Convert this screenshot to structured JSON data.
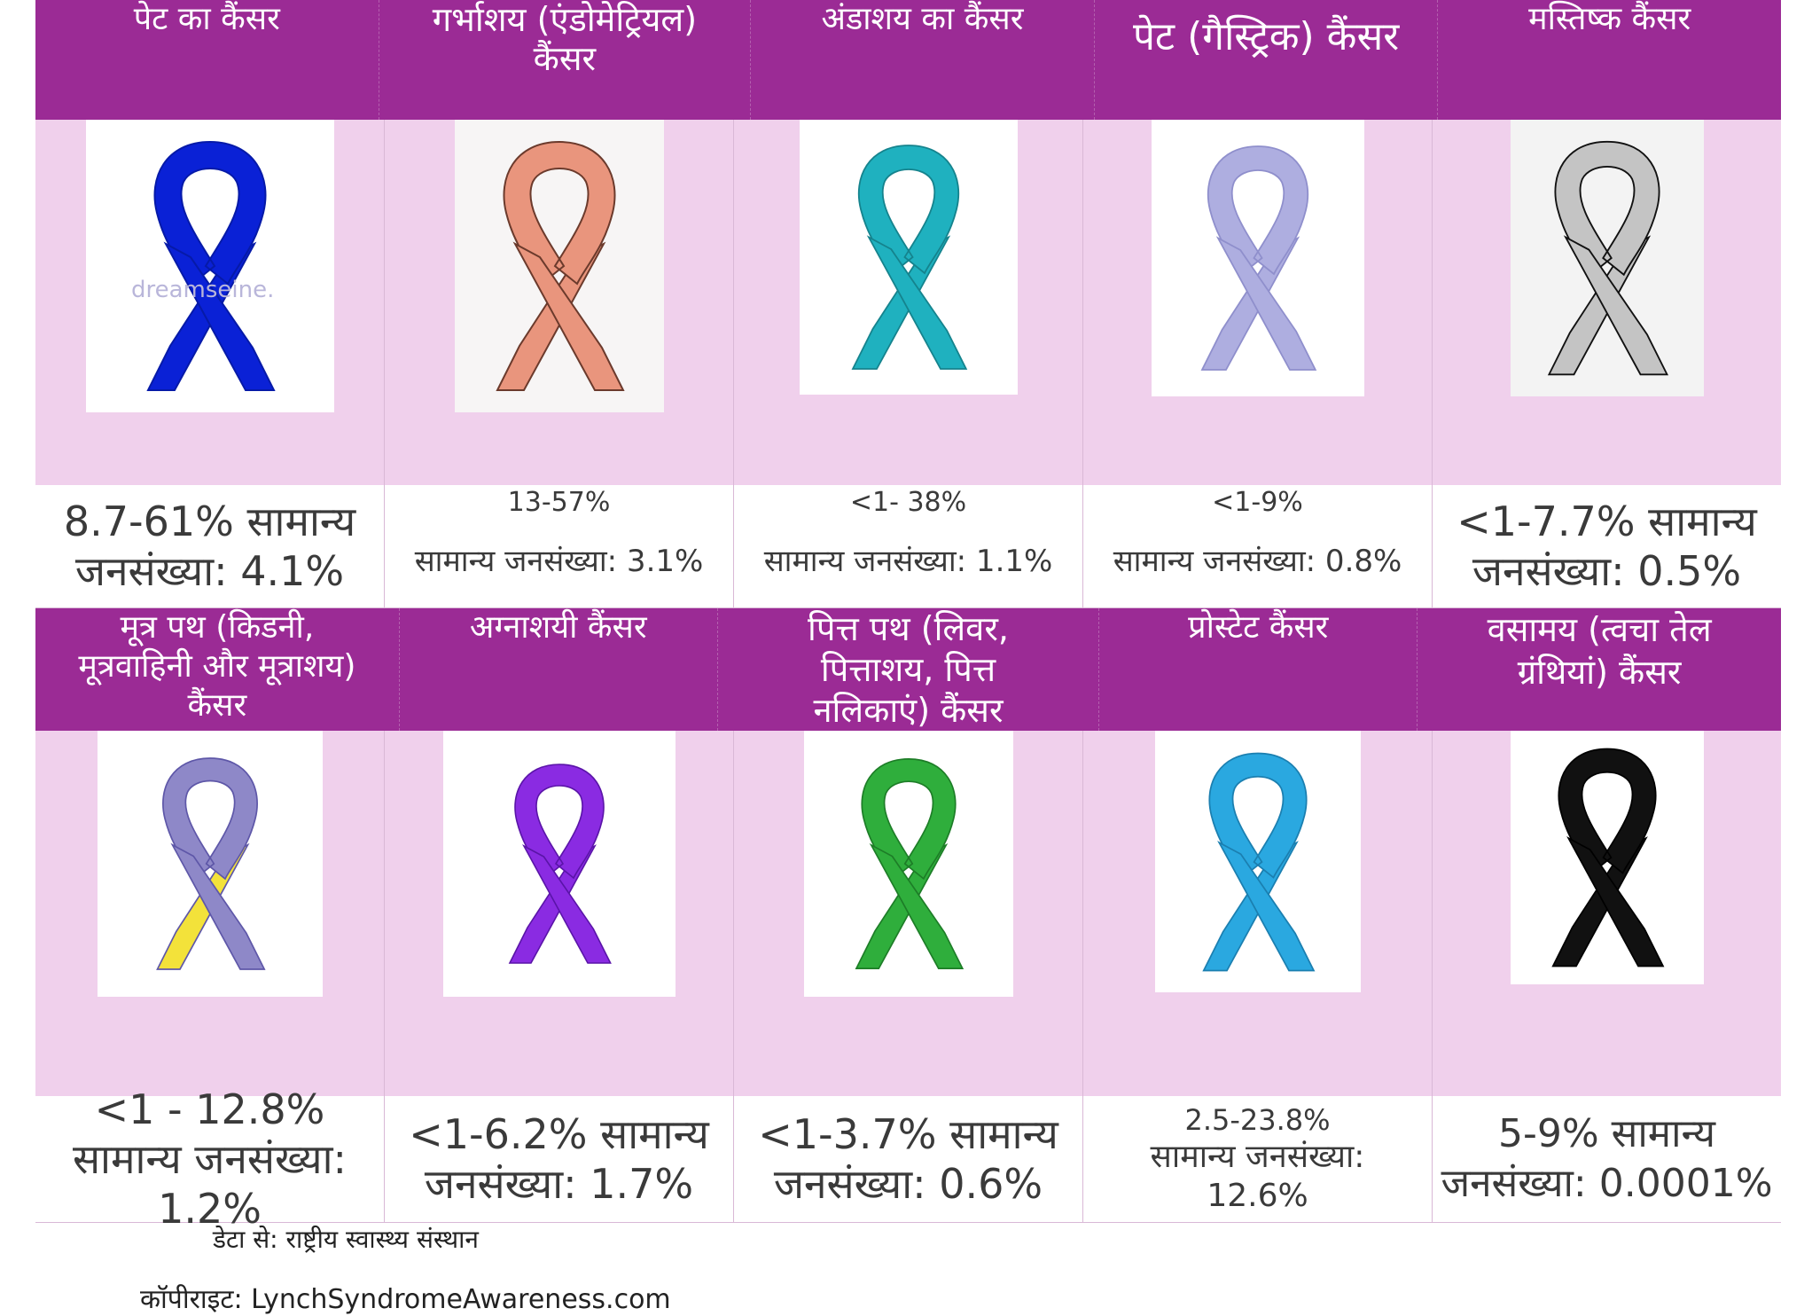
{
  "row1": [
    {
      "title": "पेट का कैंसर",
      "value": "8.7-61% सामान्य जनसंख्या: 4.1%",
      "color": "#0a21d6",
      "edge": "#061aa8",
      "watermark": "dreamseine."
    },
    {
      "title": "गर्भाशय (एंडोमेट्रियल) कैंसर",
      "value_top": "13-57%",
      "value_bottom": "सामान्य जनसंख्या: 3.1%",
      "color": "#e9957d",
      "edge": "#6b3a2c"
    },
    {
      "title": "अंडाशय का कैंसर",
      "value_top": "<1- 38%",
      "value_bottom": "सामान्य जनसंख्या: 1.1%",
      "color": "#1fb1bf",
      "edge": "#15838d"
    },
    {
      "title": "पेट (गैस्ट्रिक) कैंसर",
      "value_top": "<1-9%",
      "value_bottom": "सामान्य जनसंख्या: 0.8%",
      "color": "#aeaee0",
      "edge": "#8f8fcc"
    },
    {
      "title": "मस्तिष्क कैंसर",
      "value": "<1-7.7% सामान्य जनसंख्या: 0.5%",
      "color": "#c4c4c4",
      "edge": "#111111"
    }
  ],
  "row2": [
    {
      "title": "मूत्र पथ (किडनी, मूत्रवाहिनी और मूत्राशय) कैंसर",
      "value": "<1 - 12.8% सामान्य जनसंख्या: 1.2%",
      "color": "#8e88c8",
      "color2": "#f3e23a",
      "edge": "#5e57a8"
    },
    {
      "title": "अग्नाशयी कैंसर",
      "value": "<1-6.2% सामान्य जनसंख्या: 1.7%",
      "color": "#8a2be2",
      "edge": "#5a14a8"
    },
    {
      "title": "पित्त पथ (लिवर, पित्ताशय, पित्त नलिकाएं) कैंसर",
      "value": "<1-3.7% सामान्य जनसंख्या: 0.6%",
      "color": "#2fae3c",
      "edge": "#1d7d27"
    },
    {
      "title": "प्रोस्टेट कैंसर",
      "value_top": "2.5-23.8%",
      "value_bottom": "सामान्य जनसंख्या: 12.6%",
      "color": "#2aa8e0",
      "edge": "#1b7fb0"
    },
    {
      "title": "वसामय (त्वचा तेल ग्रंथियां) कैंसर",
      "value": "5-9% सामान्य जनसंख्या: 0.0001%",
      "color": "#111111",
      "edge": "#000000"
    }
  ],
  "source": "डेटा से: राष्ट्रीय स्वास्थ्य संस्थान",
  "copyright": "कॉपीराइट: LynchSyndromeAwareness.com"
}
